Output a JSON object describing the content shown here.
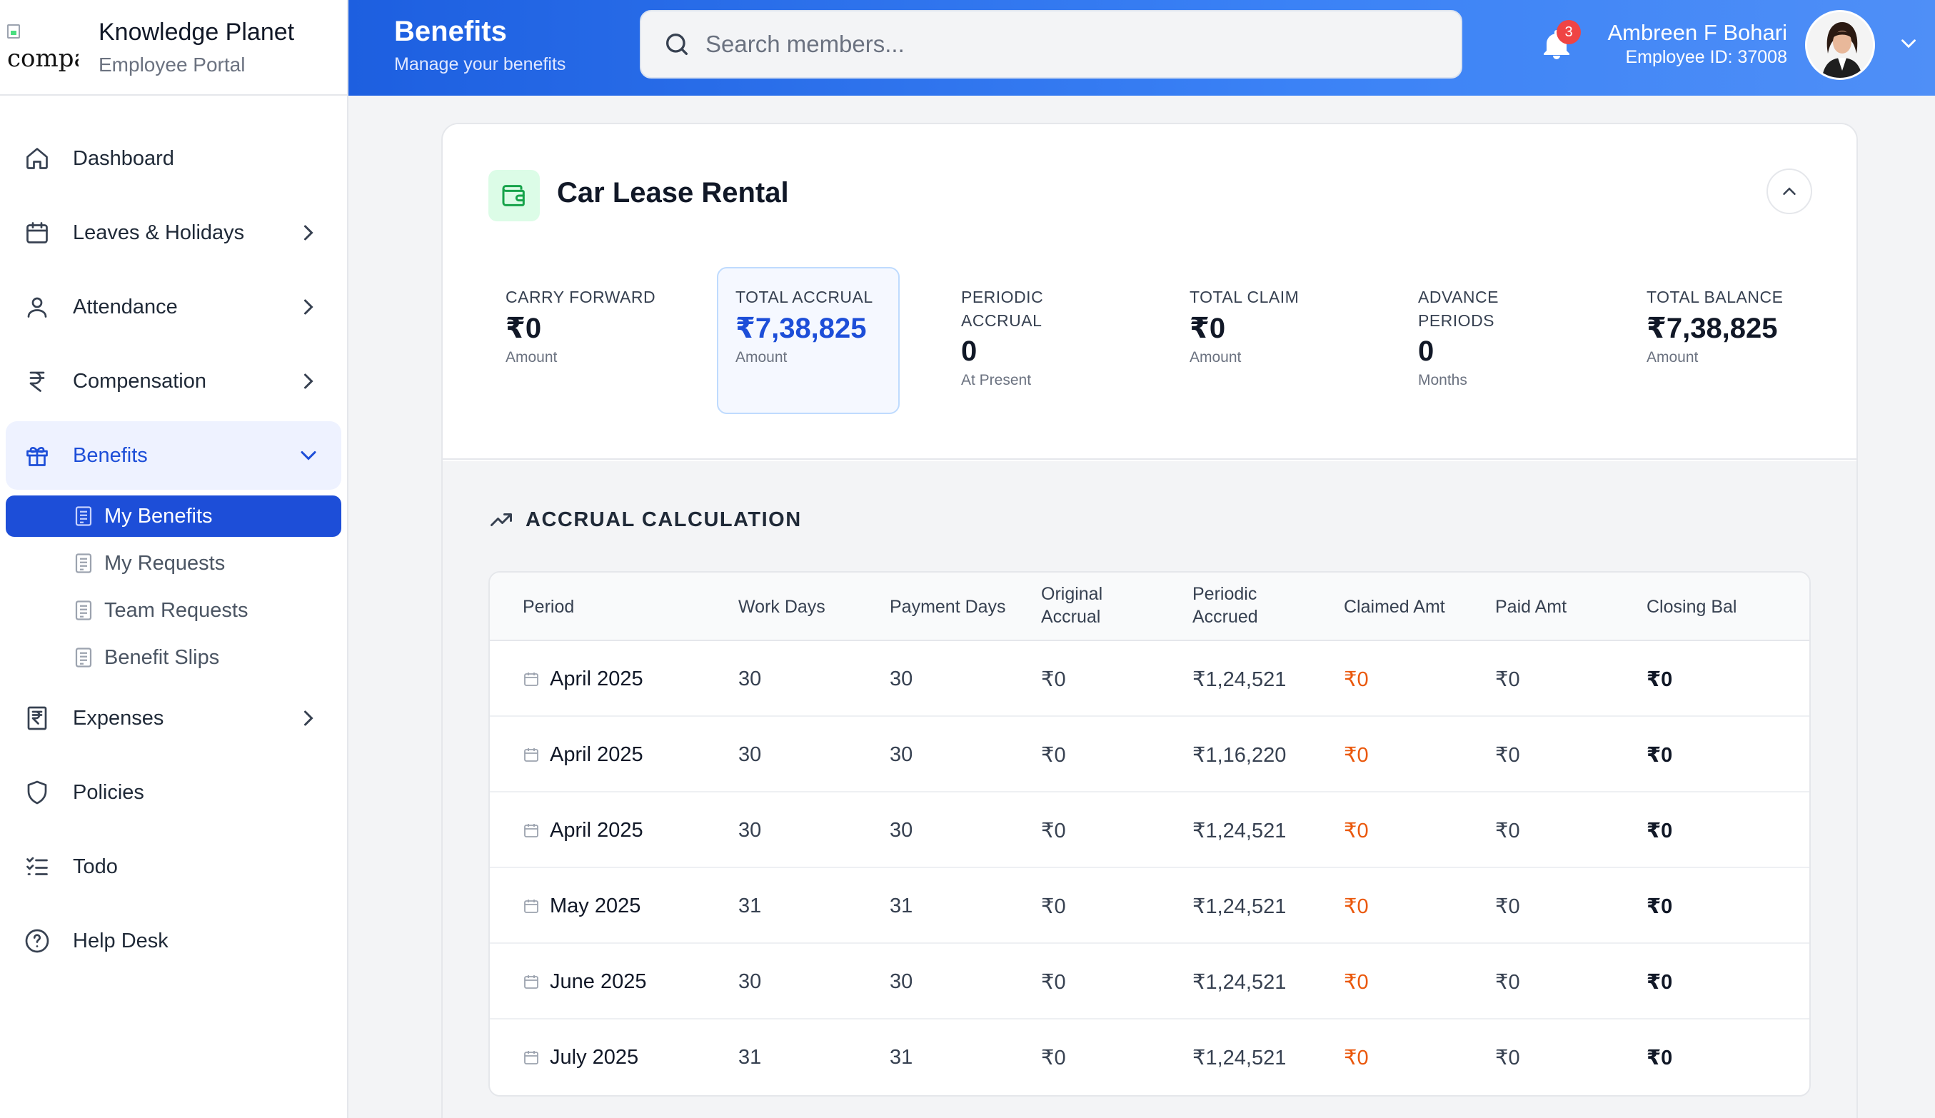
{
  "brand": {
    "logo_alt": "compa",
    "title": "Knowledge Planet",
    "subtitle": "Employee Portal"
  },
  "sidebar": {
    "items": [
      {
        "label": "Dashboard",
        "icon": "home-icon"
      },
      {
        "label": "Leaves & Holidays",
        "icon": "calendar-icon"
      },
      {
        "label": "Attendance",
        "icon": "user-icon"
      },
      {
        "label": "Compensation",
        "icon": "rupee-icon"
      },
      {
        "label": "Benefits",
        "icon": "gift-icon"
      },
      {
        "label": "Expenses",
        "icon": "receipt-icon"
      },
      {
        "label": "Policies",
        "icon": "shield-icon"
      },
      {
        "label": "Todo",
        "icon": "list-check-icon"
      },
      {
        "label": "Help Desk",
        "icon": "help-circle-icon"
      }
    ],
    "benefits_sub": [
      "My Benefits",
      "My Requests",
      "Team Requests",
      "Benefit Slips"
    ]
  },
  "header": {
    "title": "Benefits",
    "subtitle": "Manage your benefits",
    "search_placeholder": "Search members...",
    "notification_count": "3",
    "user_name": "Ambreen F Bohari",
    "user_id": "Employee ID: 37008"
  },
  "card": {
    "title": "Car Lease Rental",
    "stats": [
      {
        "label_lines": [
          "CARRY FORWARD"
        ],
        "value": "₹0",
        "sub": "Amount"
      },
      {
        "label_lines": [
          "TOTAL ACCRUAL"
        ],
        "value": "₹7,38,825",
        "sub": "Amount"
      },
      {
        "label_lines": [
          "PERIODIC",
          "ACCRUAL"
        ],
        "value": "0",
        "sub": "At Present"
      },
      {
        "label_lines": [
          "TOTAL CLAIM"
        ],
        "value": "₹0",
        "sub": "Amount"
      },
      {
        "label_lines": [
          "ADVANCE",
          "PERIODS"
        ],
        "value": "0",
        "sub": "Months"
      },
      {
        "label_lines": [
          "TOTAL BALANCE"
        ],
        "value": "₹7,38,825",
        "sub": "Amount"
      }
    ],
    "section_title": "ACCRUAL CALCULATION",
    "table": {
      "headers": [
        [
          "Period"
        ],
        [
          "Work Days"
        ],
        [
          "Payment Days"
        ],
        [
          "Original",
          "Accrual"
        ],
        [
          "Periodic",
          "Accrued"
        ],
        [
          "Claimed Amt"
        ],
        [
          "Paid Amt"
        ],
        [
          "Closing Bal"
        ]
      ],
      "rows": [
        [
          "April 2025",
          "30",
          "30",
          "₹0",
          "₹1,24,521",
          "₹0",
          "₹0",
          "₹0"
        ],
        [
          "April 2025",
          "30",
          "30",
          "₹0",
          "₹1,16,220",
          "₹0",
          "₹0",
          "₹0"
        ],
        [
          "April 2025",
          "30",
          "30",
          "₹0",
          "₹1,24,521",
          "₹0",
          "₹0",
          "₹0"
        ],
        [
          "May 2025",
          "31",
          "31",
          "₹0",
          "₹1,24,521",
          "₹0",
          "₹0",
          "₹0"
        ],
        [
          "June 2025",
          "30",
          "30",
          "₹0",
          "₹1,24,521",
          "₹0",
          "₹0",
          "₹0"
        ],
        [
          "July 2025",
          "31",
          "31",
          "₹0",
          "₹1,24,521",
          "₹0",
          "₹0",
          "₹0"
        ]
      ]
    }
  },
  "colors": {
    "primary": "#1d4ed8",
    "header_gradient_start": "#1d5fe0",
    "claimed_orange": "#ea580c",
    "badge_red": "#ef4444"
  }
}
